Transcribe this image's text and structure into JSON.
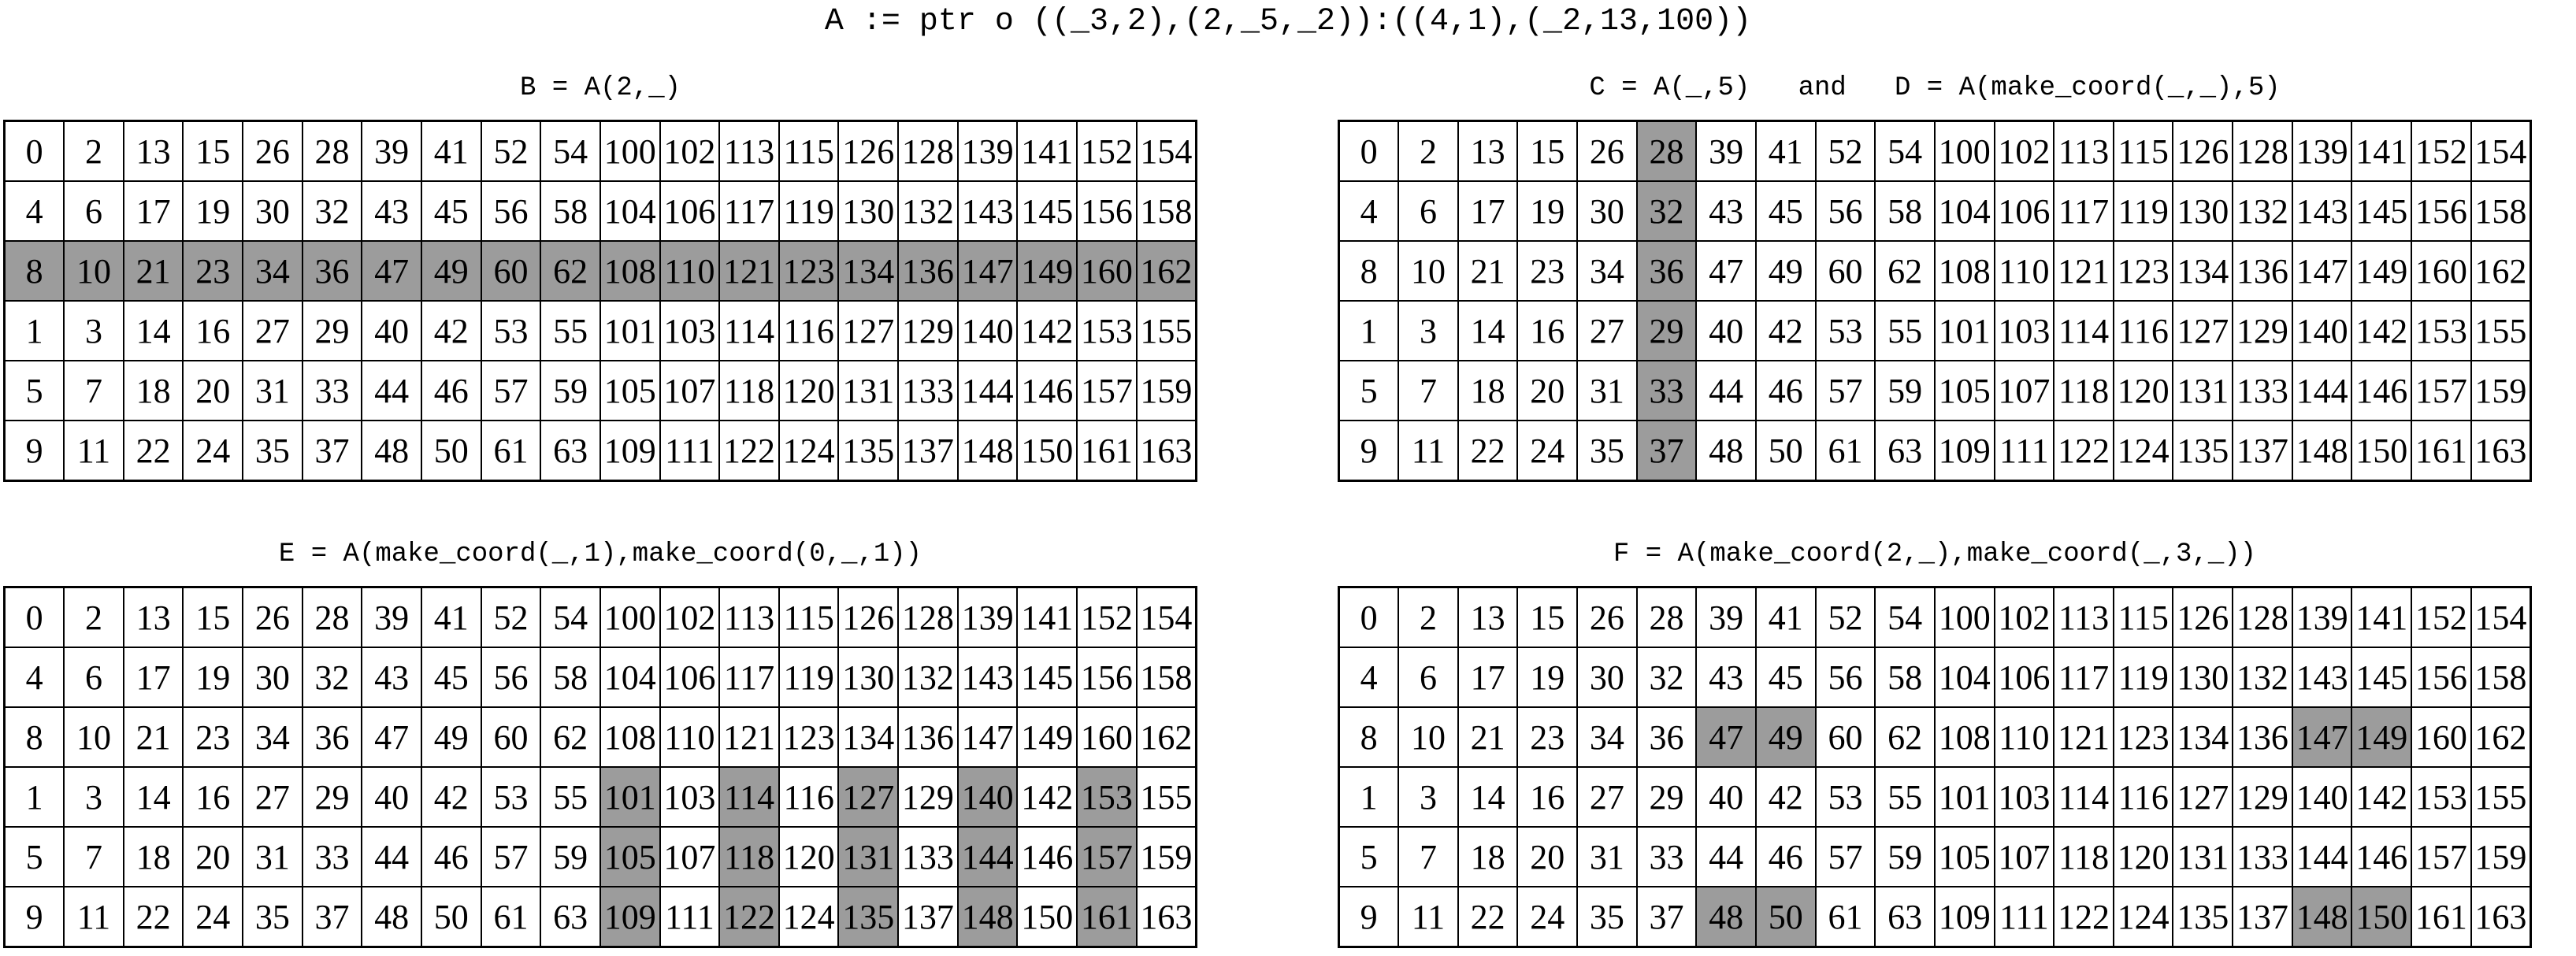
{
  "title": "A := ptr o ((_3,2),(2,_5,_2)):((4,1),(_2,13,100))",
  "colors": {
    "highlight": "#9c9c9c",
    "border": "#000000",
    "background": "#ffffff"
  },
  "grid": {
    "rows": 6,
    "cols": 20,
    "values": [
      [
        0,
        2,
        13,
        15,
        26,
        28,
        39,
        41,
        52,
        54,
        100,
        102,
        113,
        115,
        126,
        128,
        139,
        141,
        152,
        154
      ],
      [
        4,
        6,
        17,
        19,
        30,
        32,
        43,
        45,
        56,
        58,
        104,
        106,
        117,
        119,
        130,
        132,
        143,
        145,
        156,
        158
      ],
      [
        8,
        10,
        21,
        23,
        34,
        36,
        47,
        49,
        60,
        62,
        108,
        110,
        121,
        123,
        134,
        136,
        147,
        149,
        160,
        162
      ],
      [
        1,
        3,
        14,
        16,
        27,
        29,
        40,
        42,
        53,
        55,
        101,
        103,
        114,
        116,
        127,
        129,
        140,
        142,
        153,
        155
      ],
      [
        5,
        7,
        18,
        20,
        31,
        33,
        44,
        46,
        57,
        59,
        105,
        107,
        118,
        120,
        131,
        133,
        144,
        146,
        157,
        159
      ],
      [
        9,
        11,
        22,
        24,
        35,
        37,
        48,
        50,
        61,
        63,
        109,
        111,
        122,
        124,
        135,
        137,
        148,
        150,
        161,
        163
      ]
    ]
  },
  "panels": [
    {
      "id": "B",
      "caption": "B = A(2,_)",
      "highlight_cells": [
        [
          2,
          0
        ],
        [
          2,
          1
        ],
        [
          2,
          2
        ],
        [
          2,
          3
        ],
        [
          2,
          4
        ],
        [
          2,
          5
        ],
        [
          2,
          6
        ],
        [
          2,
          7
        ],
        [
          2,
          8
        ],
        [
          2,
          9
        ],
        [
          2,
          10
        ],
        [
          2,
          11
        ],
        [
          2,
          12
        ],
        [
          2,
          13
        ],
        [
          2,
          14
        ],
        [
          2,
          15
        ],
        [
          2,
          16
        ],
        [
          2,
          17
        ],
        [
          2,
          18
        ],
        [
          2,
          19
        ]
      ]
    },
    {
      "id": "CD",
      "caption": "C = A(_,5)   and   D = A(make_coord(_,_),5)",
      "highlight_cells": [
        [
          0,
          5
        ],
        [
          1,
          5
        ],
        [
          2,
          5
        ],
        [
          3,
          5
        ],
        [
          4,
          5
        ],
        [
          5,
          5
        ]
      ]
    },
    {
      "id": "E",
      "caption": "E = A(make_coord(_,1),make_coord(0,_,1))",
      "highlight_cells": [
        [
          3,
          10
        ],
        [
          3,
          12
        ],
        [
          3,
          14
        ],
        [
          3,
          16
        ],
        [
          3,
          18
        ],
        [
          4,
          10
        ],
        [
          4,
          12
        ],
        [
          4,
          14
        ],
        [
          4,
          16
        ],
        [
          4,
          18
        ],
        [
          5,
          10
        ],
        [
          5,
          12
        ],
        [
          5,
          14
        ],
        [
          5,
          16
        ],
        [
          5,
          18
        ]
      ]
    },
    {
      "id": "F",
      "caption": "F = A(make_coord(2,_),make_coord(_,3,_))",
      "highlight_cells": [
        [
          2,
          6
        ],
        [
          2,
          7
        ],
        [
          2,
          16
        ],
        [
          2,
          17
        ],
        [
          5,
          6
        ],
        [
          5,
          7
        ],
        [
          5,
          16
        ],
        [
          5,
          17
        ]
      ]
    }
  ]
}
